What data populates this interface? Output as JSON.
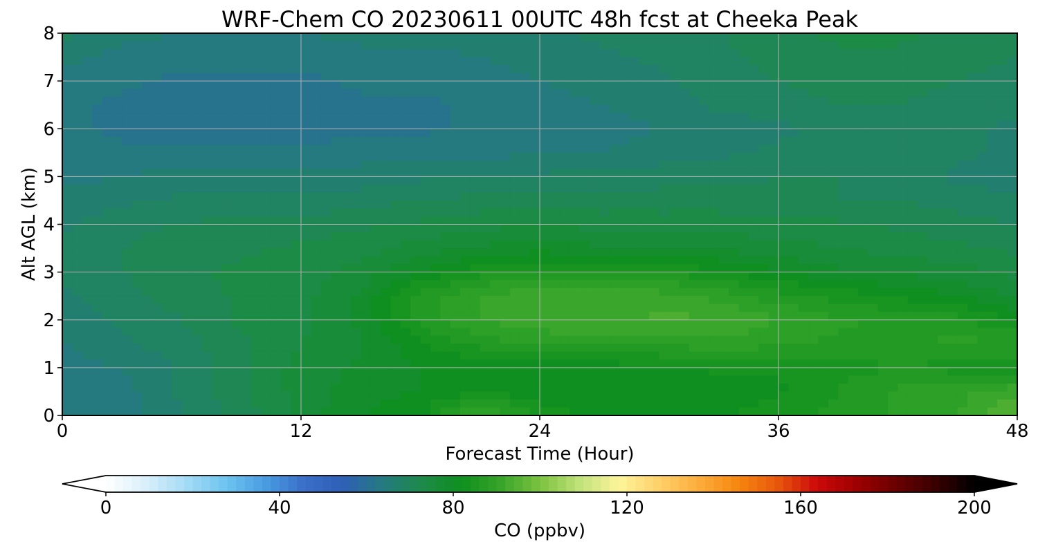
{
  "chart_data": {
    "type": "heatmap",
    "title": "WRF-Chem CO  20230611 00UTC 48h fcst at Cheeka Peak",
    "xlabel": "Forecast Time (Hour)",
    "ylabel": "Alt AGL (km)",
    "xlim": [
      0,
      48
    ],
    "ylim": [
      0,
      8
    ],
    "xticks": [
      0,
      12,
      24,
      36,
      48
    ],
    "yticks": [
      0,
      1,
      2,
      3,
      4,
      5,
      6,
      7,
      8
    ],
    "grid": true,
    "colorbar": {
      "label": "CO  (ppbv)",
      "range": [
        0,
        200
      ],
      "ticks": [
        0,
        40,
        80,
        120,
        160,
        200
      ],
      "extend": "both",
      "colors": [
        "#ffffff",
        "#d9f0fb",
        "#a6dcf5",
        "#6fc5ef",
        "#4a9ee2",
        "#3a6fc8",
        "#2f5fb6",
        "#247a80",
        "#1d8a4a",
        "#0f8f1e",
        "#37a52a",
        "#7cc23f",
        "#c0e27a",
        "#fdf59a",
        "#fed16a",
        "#fcae3d",
        "#f6870f",
        "#e8580c",
        "#cc0a0a",
        "#9f0000",
        "#6b0000",
        "#3a0000",
        "#000000"
      ]
    },
    "x": [
      0,
      3,
      6,
      9,
      12,
      15,
      18,
      21,
      24,
      27,
      30,
      33,
      36,
      39,
      42,
      45,
      48
    ],
    "y": [
      0,
      0.5,
      1,
      1.5,
      2,
      2.5,
      3,
      3.5,
      4,
      4.5,
      5,
      5.5,
      6,
      6.5,
      7,
      7.5,
      8
    ],
    "z": [
      [
        64,
        64,
        67,
        71,
        76,
        80,
        82,
        92,
        84,
        82,
        81,
        82,
        84,
        86,
        88,
        90,
        96
      ],
      [
        63,
        64,
        68,
        72,
        76,
        79,
        80,
        82,
        81,
        80,
        80,
        81,
        82,
        85,
        88,
        89,
        92
      ],
      [
        64,
        65,
        68,
        72,
        76,
        78,
        80,
        81,
        81,
        81,
        82,
        83,
        83,
        84,
        85,
        84,
        83
      ],
      [
        65,
        67,
        69,
        72,
        75,
        77,
        82,
        86,
        88,
        88,
        88,
        89,
        88,
        87,
        87,
        88,
        88
      ],
      [
        66,
        68,
        70,
        73,
        74,
        78,
        86,
        90,
        92,
        92,
        93,
        93,
        90,
        88,
        87,
        86,
        82
      ],
      [
        67,
        69,
        71,
        73,
        74,
        78,
        86,
        90,
        92,
        92,
        91,
        89,
        86,
        84,
        82,
        80,
        77
      ],
      [
        68,
        70,
        72,
        73,
        74,
        76,
        80,
        84,
        86,
        86,
        85,
        83,
        80,
        78,
        77,
        76,
        74
      ],
      [
        68,
        70,
        72,
        72,
        73,
        74,
        76,
        78,
        79,
        78,
        78,
        77,
        76,
        75,
        74,
        73,
        72
      ],
      [
        67,
        69,
        70,
        71,
        71,
        72,
        73,
        74,
        75,
        74,
        74,
        74,
        73,
        73,
        72,
        71,
        70
      ],
      [
        66,
        67,
        68,
        68,
        68,
        69,
        70,
        71,
        71,
        71,
        71,
        71,
        71,
        70,
        70,
        69,
        68
      ],
      [
        64,
        65,
        66,
        66,
        66,
        66,
        67,
        67,
        68,
        68,
        69,
        69,
        70,
        70,
        69,
        67,
        66
      ],
      [
        63,
        63,
        63,
        63,
        63,
        64,
        64,
        64,
        65,
        65,
        66,
        67,
        68,
        69,
        69,
        68,
        67
      ],
      [
        63,
        62,
        61,
        61,
        61,
        62,
        62,
        63,
        63,
        64,
        65,
        66,
        67,
        68,
        68,
        68,
        67
      ],
      [
        63,
        62,
        61,
        60,
        61,
        62,
        62,
        63,
        64,
        65,
        66,
        68,
        69,
        70,
        70,
        69,
        68
      ],
      [
        64,
        63,
        62,
        62,
        62,
        63,
        63,
        64,
        65,
        66,
        67,
        69,
        70,
        71,
        71,
        70,
        69
      ],
      [
        66,
        64,
        63,
        63,
        63,
        64,
        64,
        65,
        66,
        67,
        68,
        69,
        71,
        72,
        72,
        71,
        70
      ],
      [
        68,
        66,
        65,
        65,
        65,
        66,
        66,
        67,
        67,
        68,
        69,
        70,
        72,
        73,
        73,
        72,
        71
      ]
    ]
  }
}
